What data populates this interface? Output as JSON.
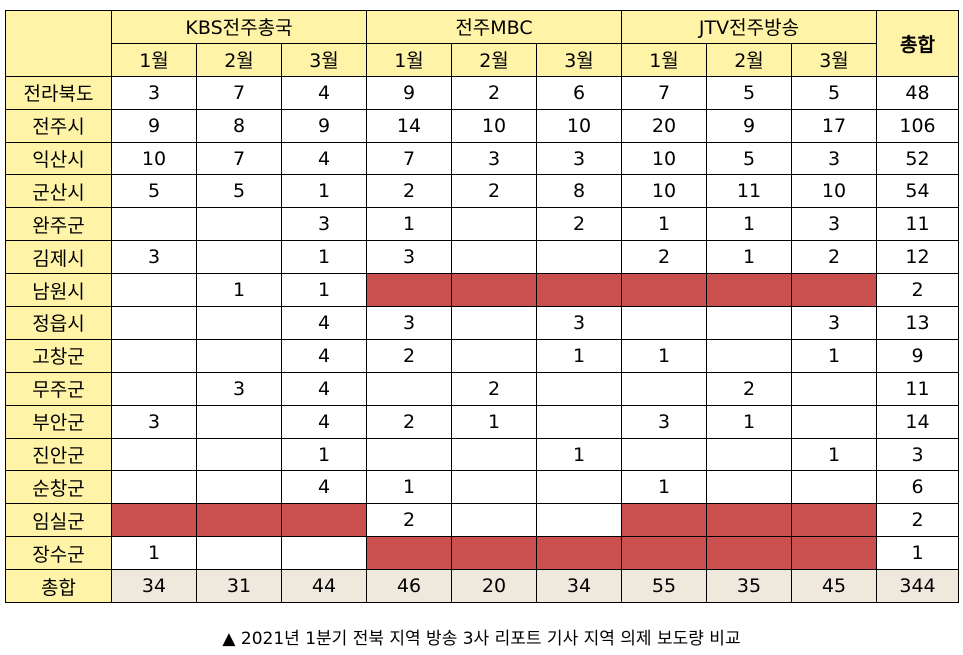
{
  "header": {
    "groups": [
      "KBS전주총국",
      "전주MBC",
      "JTV전주방송"
    ],
    "months": [
      "1월",
      "2월",
      "3월"
    ],
    "total_label": "총합"
  },
  "colors": {
    "header_bg": "#fef3a6",
    "total_bg": "#efe8dc",
    "blocked": "#c9504e"
  },
  "rows": [
    {
      "region": "전라북도",
      "cells": [
        "3",
        "7",
        "4",
        "9",
        "2",
        "6",
        "7",
        "5",
        "5"
      ],
      "total": "48"
    },
    {
      "region": "전주시",
      "cells": [
        "9",
        "8",
        "9",
        "14",
        "10",
        "10",
        "20",
        "9",
        "17"
      ],
      "total": "106"
    },
    {
      "region": "익산시",
      "cells": [
        "10",
        "7",
        "4",
        "7",
        "3",
        "3",
        "10",
        "5",
        "3"
      ],
      "total": "52"
    },
    {
      "region": "군산시",
      "cells": [
        "5",
        "5",
        "1",
        "2",
        "2",
        "8",
        "10",
        "11",
        "10"
      ],
      "total": "54"
    },
    {
      "region": "완주군",
      "cells": [
        "",
        "",
        "3",
        "1",
        "",
        "2",
        "1",
        "1",
        "3"
      ],
      "total": "11"
    },
    {
      "region": "김제시",
      "cells": [
        "3",
        "",
        "1",
        "3",
        "",
        "",
        "2",
        "1",
        "2"
      ],
      "total": "12"
    },
    {
      "region": "남원시",
      "cells": [
        "",
        "1",
        "1",
        "",
        "",
        "",
        "",
        "",
        ""
      ],
      "blocked": [
        3,
        4,
        5,
        6,
        7,
        8
      ],
      "total": "2"
    },
    {
      "region": "정읍시",
      "cells": [
        "",
        "",
        "4",
        "3",
        "",
        "3",
        "",
        "",
        "3"
      ],
      "total": "13"
    },
    {
      "region": "고창군",
      "cells": [
        "",
        "",
        "4",
        "2",
        "",
        "1",
        "1",
        "",
        "1"
      ],
      "total": "9"
    },
    {
      "region": "무주군",
      "cells": [
        "",
        "3",
        "4",
        "",
        "2",
        "",
        "",
        "2",
        ""
      ],
      "total": "11"
    },
    {
      "region": "부안군",
      "cells": [
        "3",
        "",
        "4",
        "2",
        "1",
        "",
        "3",
        "1",
        ""
      ],
      "total": "14"
    },
    {
      "region": "진안군",
      "cells": [
        "",
        "",
        "1",
        "",
        "",
        "1",
        "",
        "",
        "1"
      ],
      "total": "3"
    },
    {
      "region": "순창군",
      "cells": [
        "",
        "",
        "4",
        "1",
        "",
        "",
        "1",
        "",
        ""
      ],
      "total": "6"
    },
    {
      "region": "임실군",
      "cells": [
        "",
        "",
        "",
        "2",
        "",
        "",
        "",
        "",
        ""
      ],
      "blocked": [
        0,
        1,
        2,
        6,
        7,
        8
      ],
      "total": "2"
    },
    {
      "region": "장수군",
      "cells": [
        "1",
        "",
        "",
        "",
        "",
        "",
        "",
        "",
        ""
      ],
      "blocked": [
        3,
        4,
        5,
        6,
        7,
        8
      ],
      "total": "1"
    }
  ],
  "totals_row": {
    "label": "총합",
    "cells": [
      "34",
      "31",
      "44",
      "46",
      "20",
      "34",
      "55",
      "35",
      "45"
    ],
    "total": "344"
  },
  "caption": "▲ 2021년 1분기 전북 지역 방송 3사 리포트 기사 지역 의제 보도량 비교"
}
